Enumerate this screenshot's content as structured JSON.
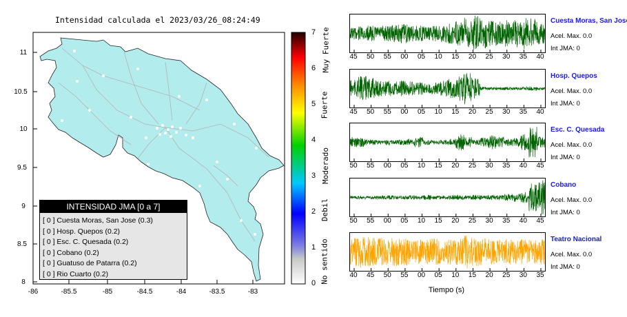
{
  "map": {
    "title": "Intensidad calculada el 2023/03/26_08:24:49",
    "x_ticks": [
      "-86",
      "-85.5",
      "-85",
      "-84.5",
      "-84",
      "-83.5",
      "-83"
    ],
    "y_ticks": [
      "11",
      "10.5",
      "10",
      "9.5",
      "9",
      "8.5",
      "8"
    ],
    "land_color": "#b2ecec"
  },
  "legend": {
    "title": "INTENSIDAD JMA [0 a 7]",
    "items": [
      "[ 0 ]  Cuesta Moras, San Jose (0.3)",
      "[ 0 ]  Hosp. Quepos (0.2)",
      "[ 0 ]  Esc. C. Quesada (0.2)",
      "[ 0 ]  Cobano (0.2)",
      "[ 0 ]  Guatuso de Patarra (0.2)",
      "[ 0 ]  Rio Cuarto (0.2)"
    ]
  },
  "colorbar": {
    "ticks": [
      "0",
      "1",
      "2",
      "3",
      "4",
      "5",
      "6",
      "7"
    ],
    "classes": [
      "No sentido",
      "Debil",
      "Moderado",
      "Fuerte",
      "Muy Fuerte"
    ]
  },
  "chart_data": [
    {
      "type": "line",
      "title": "Cuesta Moras, San Jose",
      "x_ticks": [
        "45",
        "50",
        "55",
        "00",
        "05",
        "10",
        "15",
        "20",
        "25",
        "30",
        "35",
        "40"
      ],
      "acel_label": "Acel. Max. 0.0",
      "int_label": "Int JMA: 0",
      "color": "#006400",
      "amplitude_envelope": [
        0.35,
        0.4,
        0.45,
        0.4,
        0.45,
        0.5,
        0.55,
        0.5,
        0.45,
        0.4,
        0.45,
        0.55,
        0.6,
        0.7,
        0.9,
        1.0,
        0.85,
        0.8,
        0.7,
        0.75,
        0.8,
        0.9,
        0.85,
        0.7
      ]
    },
    {
      "type": "line",
      "title": "Hosp. Quepos",
      "x_ticks": [
        "45",
        "50",
        "55",
        "00",
        "05",
        "10",
        "15",
        "20",
        "25",
        "30",
        "35",
        "40"
      ],
      "acel_label": "Acel. Max. 0.0",
      "int_label": "Int JMA: 0",
      "color": "#006400",
      "amplitude_envelope": [
        0.5,
        0.7,
        0.6,
        0.5,
        0.45,
        0.4,
        0.45,
        0.4,
        0.35,
        0.3,
        0.35,
        0.45,
        0.55,
        0.7,
        0.9,
        0.6,
        0.1,
        0.08,
        0.08,
        0.08,
        0.08,
        0.1,
        0.12,
        0.08
      ]
    },
    {
      "type": "line",
      "title": "Esc. C. Quesada",
      "x_ticks": [
        "50",
        "55",
        "00",
        "05",
        "10",
        "15",
        "20",
        "25",
        "30",
        "35",
        "40",
        "45"
      ],
      "acel_label": "Acel. Max. 0.0",
      "int_label": "Int JMA: 0",
      "color": "#006400",
      "amplitude_envelope": [
        0.3,
        0.25,
        0.15,
        0.12,
        0.15,
        0.12,
        0.15,
        0.2,
        0.3,
        0.15,
        0.12,
        0.15,
        0.2,
        0.5,
        0.3,
        0.15,
        0.25,
        0.4,
        0.3,
        0.2,
        0.25,
        0.5,
        0.95,
        0.3
      ]
    },
    {
      "type": "line",
      "title": "Cobano",
      "x_ticks": [
        "50",
        "55",
        "00",
        "05",
        "10",
        "15",
        "20",
        "25",
        "30",
        "35",
        "40",
        "45"
      ],
      "acel_label": "Acel. Max. 0.0",
      "int_label": "Int JMA: 0",
      "color": "#006400",
      "amplitude_envelope": [
        0.08,
        0.1,
        0.08,
        0.1,
        0.12,
        0.1,
        0.1,
        0.12,
        0.1,
        0.15,
        0.12,
        0.1,
        0.12,
        0.15,
        0.12,
        0.15,
        0.12,
        0.15,
        0.15,
        0.2,
        0.25,
        0.3,
        0.8,
        1.0
      ]
    },
    {
      "type": "line",
      "title": "Teatro Nacional",
      "x_ticks": [
        "40",
        "45",
        "50",
        "55",
        "00",
        "05",
        "10",
        "15",
        "20",
        "25",
        "30",
        "35"
      ],
      "xlabel": "Tiempo (s)",
      "acel_label": "Acel. Max. 0.0",
      "int_label": "Int JMA: 0",
      "color": "#ffa500",
      "amplitude_envelope": [
        0.8,
        0.9,
        0.85,
        0.8,
        0.75,
        0.85,
        0.8,
        0.75,
        0.7,
        0.75,
        0.8,
        0.7,
        0.75,
        0.8,
        0.95,
        0.85,
        0.8,
        0.75,
        0.7,
        0.75,
        0.7,
        0.75,
        0.7,
        0.75
      ]
    }
  ]
}
